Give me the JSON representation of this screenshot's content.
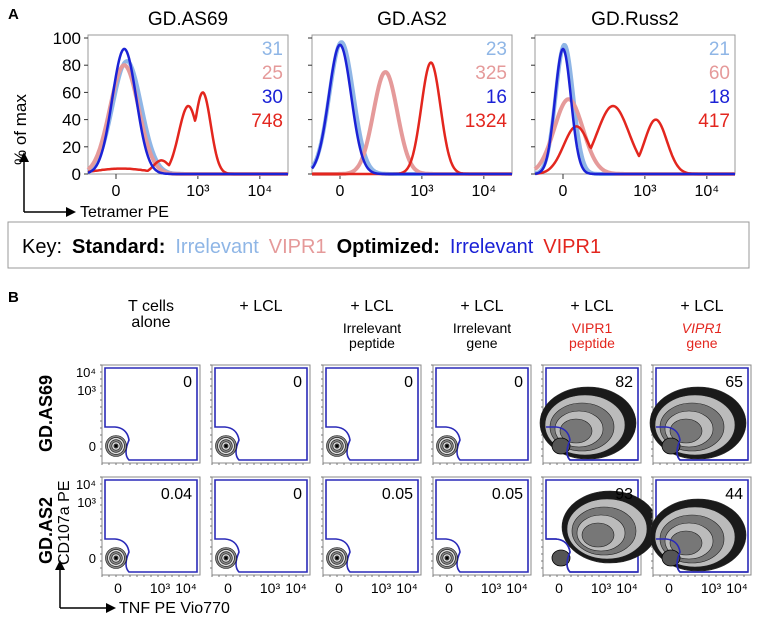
{
  "panel_a_label": "A",
  "panel_b_label": "B",
  "colors": {
    "std_irrelevant": "#8fb6e6",
    "std_vipr1": "#e59a9a",
    "opt_irrelevant": "#1b22d6",
    "opt_vipr1": "#e3261e",
    "gate": "#2a2ab8"
  },
  "chart_data": [
    {
      "type": "line",
      "subtype": "histogram",
      "ylabel": "% of max",
      "xlabel": "Tetramer PE",
      "ylim": [
        0,
        100
      ],
      "yticks": [
        "0",
        "20",
        "40",
        "60",
        "80",
        "100"
      ],
      "xticks": [
        "0",
        "10³",
        "10⁴"
      ],
      "xscale": "biexponential",
      "panels": [
        {
          "title": "GD.AS69",
          "mfi": [
            "31",
            "25",
            "30",
            "748"
          ],
          "series": [
            {
              "key": "std_irrelevant",
              "peaks": [
                {
                  "center": 40,
                  "height": 83,
                  "spread": 0.9
                }
              ]
            },
            {
              "key": "std_vipr1",
              "peaks": [
                {
                  "center": 30,
                  "height": 80,
                  "spread": 0.9
                }
              ]
            },
            {
              "key": "opt_irrelevant",
              "peaks": [
                {
                  "center": 30,
                  "height": 92,
                  "spread": 0.75
                }
              ]
            },
            {
              "key": "opt_vipr1",
              "peaks": [
                {
                  "center": 20,
                  "height": 4,
                  "spread": 1.6
                },
                {
                  "center": 250,
                  "height": 10,
                  "spread": 0.5
                },
                {
                  "center": 700,
                  "height": 50,
                  "spread": 0.6
                },
                {
                  "center": 1200,
                  "height": 60,
                  "spread": 0.5
                }
              ]
            }
          ]
        },
        {
          "title": "GD.AS2",
          "mfi": [
            "23",
            "325",
            "16",
            "1324"
          ],
          "series": [
            {
              "key": "std_irrelevant",
              "peaks": [
                {
                  "center": 5,
                  "height": 97,
                  "spread": 0.75
                }
              ]
            },
            {
              "key": "std_vipr1",
              "peaks": [
                {
                  "center": 250,
                  "height": 75,
                  "spread": 0.75
                }
              ]
            },
            {
              "key": "opt_irrelevant",
              "peaks": [
                {
                  "center": 0,
                  "height": 95,
                  "spread": 0.7
                }
              ]
            },
            {
              "key": "opt_vipr1",
              "peaks": [
                {
                  "center": 1400,
                  "height": 82,
                  "spread": 0.6
                }
              ]
            }
          ]
        },
        {
          "title": "GD.Russ2",
          "mfi": [
            "21",
            "60",
            "18",
            "417"
          ],
          "series": [
            {
              "key": "std_irrelevant",
              "peaks": [
                {
                  "center": 5,
                  "height": 95,
                  "spread": 0.55
                }
              ]
            },
            {
              "key": "std_vipr1",
              "peaks": [
                {
                  "center": 20,
                  "height": 55,
                  "spread": 0.9
                }
              ]
            },
            {
              "key": "opt_irrelevant",
              "peaks": [
                {
                  "center": 0,
                  "height": 92,
                  "spread": 0.5
                }
              ]
            },
            {
              "key": "opt_vipr1",
              "peaks": [
                {
                  "center": 50,
                  "height": 35,
                  "spread": 0.8
                },
                {
                  "center": 300,
                  "height": 50,
                  "spread": 1.0
                },
                {
                  "center": 1500,
                  "height": 40,
                  "spread": 0.7
                }
              ]
            }
          ]
        }
      ]
    },
    {
      "type": "scatter",
      "subtype": "flow-contour",
      "xlabel": "TNF PE Vio770",
      "ylabel": "CD107a PE",
      "xticks": [
        "0",
        "10³",
        "10⁴"
      ],
      "yticks": [
        "0",
        "10³",
        "10⁴"
      ],
      "columns": [
        {
          "line1": "T cells",
          "line2": "alone",
          "line3": "",
          "red": false
        },
        {
          "line1": "+ LCL",
          "line2": "",
          "line3": "",
          "red": false
        },
        {
          "line1": "+ LCL",
          "line2": "Irrelevant",
          "line3": "peptide",
          "red": false
        },
        {
          "line1": "+ LCL",
          "line2": "Irrelevant",
          "line3": "gene",
          "red": false
        },
        {
          "line1": "+ LCL",
          "line2": "VIPR1",
          "line3": "peptide",
          "red": true,
          "italic": false
        },
        {
          "line1": "+ LCL",
          "line2": "VIPR1",
          "line3": "gene",
          "red": true,
          "italic": true
        }
      ],
      "rows": [
        {
          "label": "GD.AS69",
          "values": [
            "0",
            "0",
            "0",
            "0",
            "82",
            "65"
          ]
        },
        {
          "label": "GD.AS2",
          "values": [
            "0.04",
            "0",
            "0.05",
            "0.05",
            "93",
            "44"
          ]
        }
      ]
    }
  ],
  "key": {
    "label": "Key:",
    "standard": "Standard:",
    "optimized": "Optimized:",
    "irrelevant": "Irrelevant",
    "vipr1": "VIPR1"
  }
}
